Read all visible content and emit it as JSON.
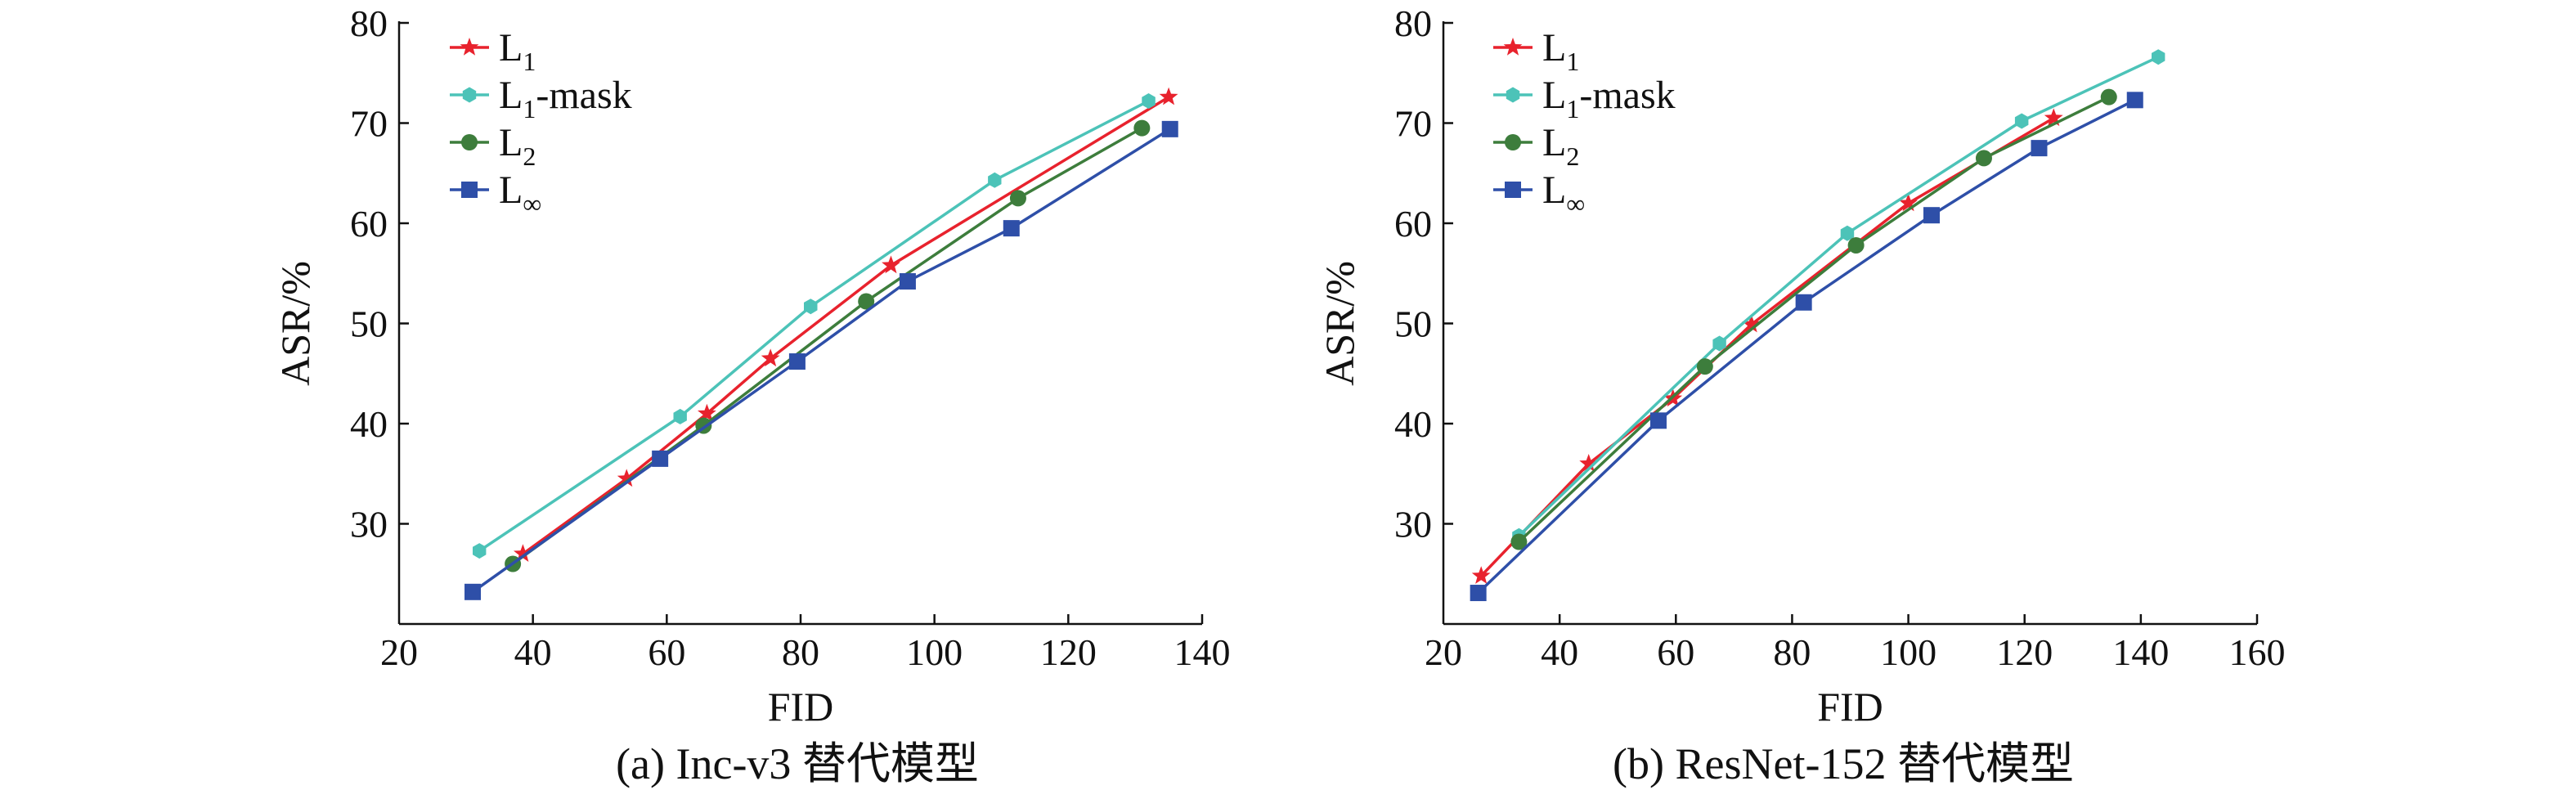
{
  "chart_data": [
    {
      "type": "line",
      "caption": "(a) Inc-v3 替代模型",
      "xlabel": "FID",
      "ylabel": "ASR/%",
      "xlim": [
        20,
        140
      ],
      "ylim": [
        20,
        80
      ],
      "xticks": [
        20,
        40,
        60,
        80,
        100,
        120,
        140
      ],
      "yticks": [
        30,
        40,
        50,
        60,
        70,
        80
      ],
      "grid": false,
      "legend_position": "top-left",
      "series": [
        {
          "name": "L₁",
          "name_base": "L",
          "name_sub": "1",
          "name_suffix": "",
          "marker": "star",
          "color": "#e8222d",
          "x": [
            38.5,
            54,
            66,
            75.5,
            93.5,
            135
          ],
          "y": [
            27,
            34.5,
            41,
            46.5,
            55.8,
            72.6
          ]
        },
        {
          "name": "L₁-mask",
          "name_base": "L",
          "name_sub": "1",
          "name_suffix": "-mask",
          "marker": "hexagon",
          "color": "#4cc3b8",
          "x": [
            32,
            62,
            81.5,
            109,
            132
          ],
          "y": [
            27.3,
            40.7,
            51.7,
            64.3,
            72.2
          ]
        },
        {
          "name": "L₂",
          "name_base": "L",
          "name_sub": "2",
          "name_suffix": "",
          "marker": "circle",
          "color": "#3d7d3c",
          "x": [
            37,
            65.5,
            89.8,
            112.5,
            131
          ],
          "y": [
            26,
            39.8,
            52.2,
            62.5,
            69.5
          ]
        },
        {
          "name": "L∞",
          "name_base": "L",
          "name_sub": "∞",
          "name_suffix": "",
          "marker": "square",
          "color": "#2e4fa8",
          "x": [
            31,
            59,
            79.5,
            96,
            111.5,
            135.2
          ],
          "y": [
            23.2,
            36.5,
            46.2,
            54.2,
            59.5,
            69.4
          ]
        }
      ]
    },
    {
      "type": "line",
      "caption": "(b) ResNet-152 替代模型",
      "xlabel": "FID",
      "ylabel": "ASR/%",
      "xlim": [
        20,
        160
      ],
      "ylim": [
        20,
        80
      ],
      "xticks": [
        20,
        40,
        60,
        80,
        100,
        120,
        140,
        160
      ],
      "yticks": [
        30,
        40,
        50,
        60,
        70,
        80
      ],
      "grid": false,
      "legend_position": "top-left",
      "series": [
        {
          "name": "L₁",
          "name_base": "L",
          "name_sub": "1",
          "name_suffix": "",
          "marker": "star",
          "color": "#e8222d",
          "x": [
            26.5,
            45,
            59.5,
            73,
            100,
            125
          ],
          "y": [
            24.8,
            36,
            42.5,
            49.9,
            62,
            70.5
          ]
        },
        {
          "name": "L₁-mask",
          "name_base": "L",
          "name_sub": "1",
          "name_suffix": "-mask",
          "marker": "hexagon",
          "color": "#4cc3b8",
          "x": [
            33,
            67.5,
            89.5,
            119.5,
            143
          ],
          "y": [
            28.8,
            48,
            59,
            70.2,
            76.6
          ]
        },
        {
          "name": "L₂",
          "name_base": "L",
          "name_sub": "2",
          "name_suffix": "",
          "marker": "circle",
          "color": "#3d7d3c",
          "x": [
            33,
            65,
            91,
            113,
            134.5
          ],
          "y": [
            28.2,
            45.7,
            57.8,
            66.5,
            72.6
          ]
        },
        {
          "name": "L∞",
          "name_base": "L",
          "name_sub": "∞",
          "name_suffix": "",
          "marker": "square",
          "color": "#2e4fa8",
          "x": [
            26,
            57,
            82,
            104,
            122.5,
            139
          ],
          "y": [
            23.1,
            40.3,
            52.1,
            60.8,
            67.5,
            72.3
          ]
        }
      ]
    }
  ]
}
